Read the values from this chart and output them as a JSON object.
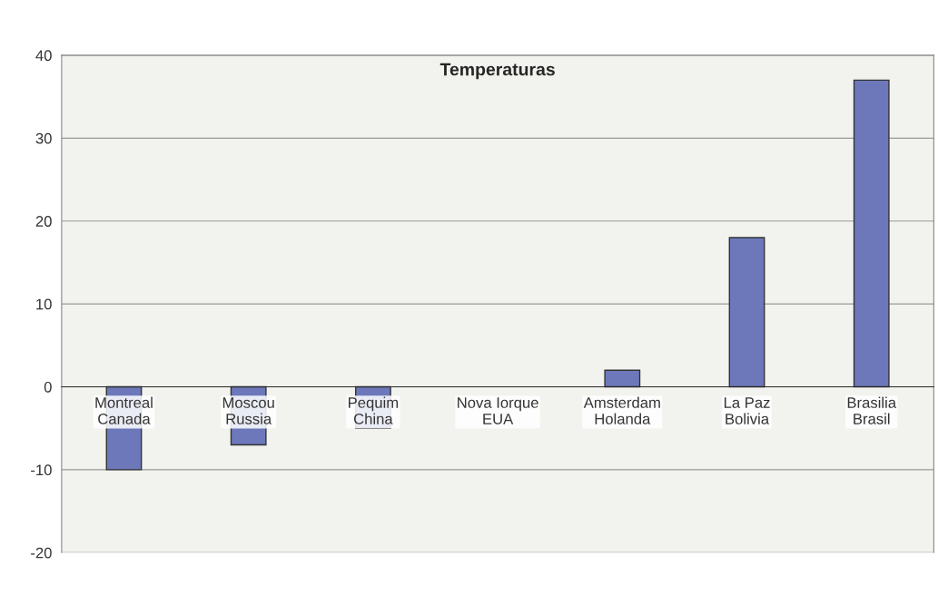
{
  "chart_data": {
    "type": "bar",
    "title": "Temperaturas",
    "categories": [
      "Montreal\nCanada",
      "Moscou\nRussia",
      "Pequim\nChina",
      "Nova Iorque\nEUA",
      "Amsterdam\nHolanda",
      "La Paz\nBolivia",
      "Brasilia\nBrasil"
    ],
    "values": [
      -10,
      -7,
      -5,
      0,
      2,
      18,
      37
    ],
    "color": "#6d78bb",
    "ylim": [
      -20,
      40
    ],
    "yticks": [
      -20,
      -10,
      0,
      10,
      20,
      30,
      40
    ],
    "grid": "y"
  }
}
